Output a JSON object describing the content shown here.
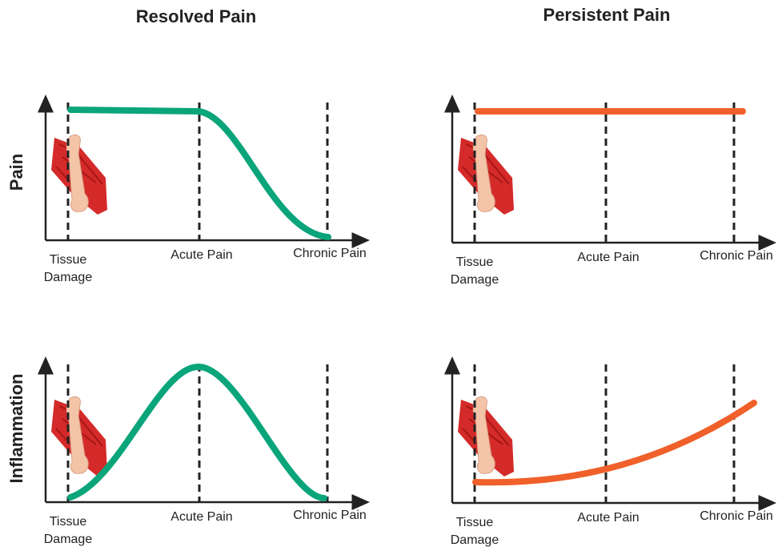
{
  "columns": [
    {
      "title": "Resolved Pain"
    },
    {
      "title": "Persistent Pain"
    }
  ],
  "rows": [
    {
      "label": "Pain"
    },
    {
      "label": "Inflammation"
    }
  ],
  "x_labels": {
    "tissue": [
      "Tissue",
      "Damage"
    ],
    "acute": "Acute Pain",
    "chronic": "Chronic Pain"
  }
}
